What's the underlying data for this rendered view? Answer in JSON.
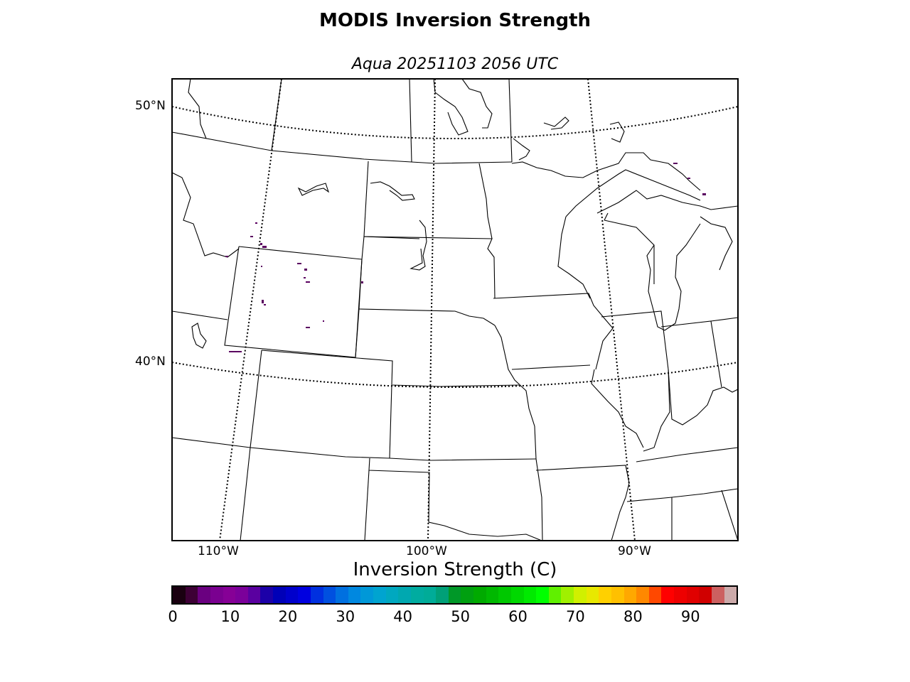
{
  "title": "MODIS Inversion Strength",
  "subtitle": "Aqua 20251103 2056 UTC",
  "map": {
    "lat_labels": [
      "50°N",
      "40°N"
    ],
    "lon_labels": [
      "110°W",
      "100°W",
      "90°W"
    ]
  },
  "colorbar": {
    "label": "Inversion Strength (C)",
    "ticks": [
      "0",
      "10",
      "20",
      "30",
      "40",
      "50",
      "60",
      "70",
      "80",
      "90"
    ],
    "range": [
      0,
      98
    ],
    "colors": [
      "#1a0010",
      "#3d0035",
      "#6a0080",
      "#7a0090",
      "#860096",
      "#7b009a",
      "#5a00a0",
      "#1c00a8",
      "#0000b8",
      "#0000cc",
      "#0000e0",
      "#0030e0",
      "#0050e0",
      "#0070e0",
      "#0088e0",
      "#0098d8",
      "#00a4d0",
      "#00a8c0",
      "#00a8b0",
      "#00aca0",
      "#00ac98",
      "#00a078",
      "#009828",
      "#00a010",
      "#00aa00",
      "#00b800",
      "#00c800",
      "#00d800",
      "#00ea00",
      "#00ff00",
      "#60f000",
      "#a0f000",
      "#d0f000",
      "#e8e800",
      "#ffd000",
      "#ffc000",
      "#ffa800",
      "#ff8800",
      "#ff4800",
      "#ff0000",
      "#ee0000",
      "#e00000",
      "#d00000",
      "#cc6060",
      "#ccaaaa"
    ]
  }
}
